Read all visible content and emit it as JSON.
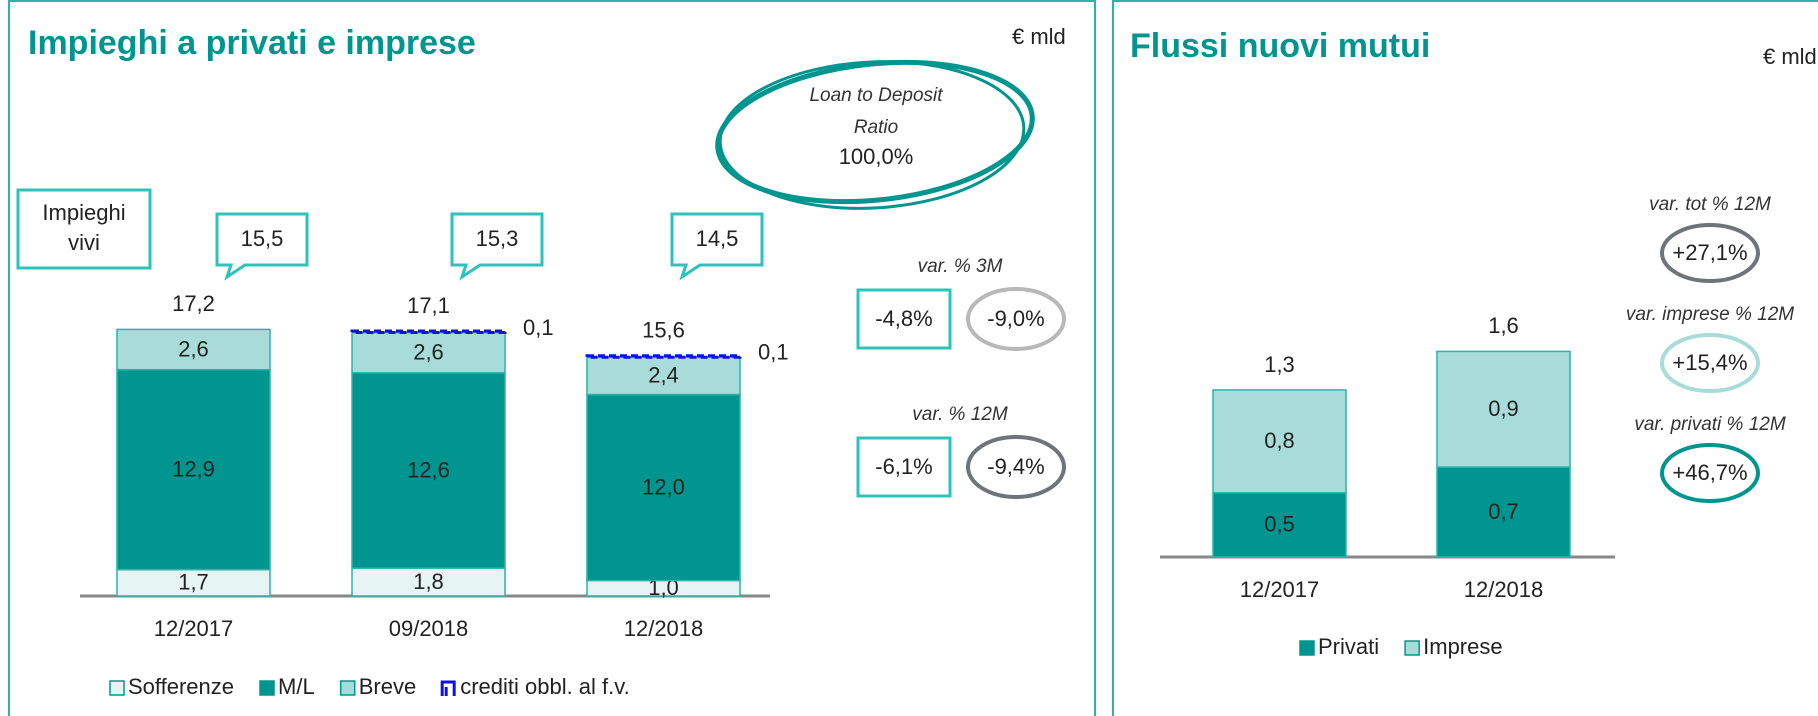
{
  "chart_data": [
    {
      "type": "bar",
      "stacked": true,
      "title": "Impieghi a privati e imprese",
      "unit": "€ mld",
      "categories": [
        "12/2017",
        "09/2018",
        "12/2018"
      ],
      "series": [
        {
          "name": "Sofferenze",
          "color": "#e6f4f3",
          "values": [
            1.7,
            1.8,
            1.0
          ],
          "value_labels": [
            "1,7",
            "1,8",
            "1,0"
          ]
        },
        {
          "name": "M/L",
          "color": "#00968f",
          "values": [
            12.9,
            12.6,
            12.0
          ],
          "value_labels": [
            "12,9",
            "12,6",
            "12,0"
          ]
        },
        {
          "name": "Breve",
          "color": "#a8dcd9",
          "values": [
            2.6,
            2.6,
            2.4
          ],
          "value_labels": [
            "2,6",
            "2,6",
            "2,4"
          ]
        },
        {
          "name": "crediti obbl. al f.v.",
          "color": "#1010e0",
          "values": [
            null,
            0.1,
            0.1
          ],
          "value_labels": [
            null,
            "0,1",
            "0,1"
          ]
        }
      ],
      "totals": {
        "values": [
          17.2,
          17.1,
          15.6
        ],
        "value_labels": [
          "17,2",
          "17,1",
          "15,6"
        ]
      },
      "callouts": {
        "title": [
          "Impieghi",
          "vivi"
        ],
        "values": [
          15.5,
          15.3,
          14.5
        ],
        "value_labels": [
          "15,5",
          "15,3",
          "14,5"
        ]
      },
      "ratio": {
        "lines": [
          "Loan to Deposit",
          "Ratio"
        ],
        "value": 100.0,
        "value_label": "100,0%"
      },
      "variations": [
        {
          "label": "var. % 3M",
          "values": [
            -4.8,
            -9.0
          ],
          "value_labels": [
            "-4,8%",
            "-9,0%"
          ]
        },
        {
          "label": "var. % 12M",
          "values": [
            -6.1,
            -9.4
          ],
          "value_labels": [
            "-6,1%",
            "-9,4%"
          ]
        }
      ]
    },
    {
      "type": "bar",
      "stacked": true,
      "title": "Flussi nuovi mutui",
      "unit": "€ mld",
      "categories": [
        "12/2017",
        "12/2018"
      ],
      "series": [
        {
          "name": "Privati",
          "color": "#00968f",
          "values": [
            0.5,
            0.7
          ],
          "value_labels": [
            "0,5",
            "0,7"
          ]
        },
        {
          "name": "Imprese",
          "color": "#a8dcd9",
          "values": [
            0.8,
            0.9
          ],
          "value_labels": [
            "0,8",
            "0,9"
          ]
        }
      ],
      "totals": {
        "values": [
          1.3,
          1.6
        ],
        "value_labels": [
          "1,3",
          "1,6"
        ]
      },
      "variations": [
        {
          "label": "var. tot % 12M",
          "value": 27.1,
          "value_label": "+27,1%",
          "color": "#6f7479"
        },
        {
          "label": "var. imprese % 12M",
          "value": 15.4,
          "value_label": "+15,4%",
          "color": "#a8dcd9"
        },
        {
          "label": "var. privati % 12M",
          "value": 46.7,
          "value_label": "+46,7%",
          "color": "#00968f"
        }
      ]
    }
  ]
}
